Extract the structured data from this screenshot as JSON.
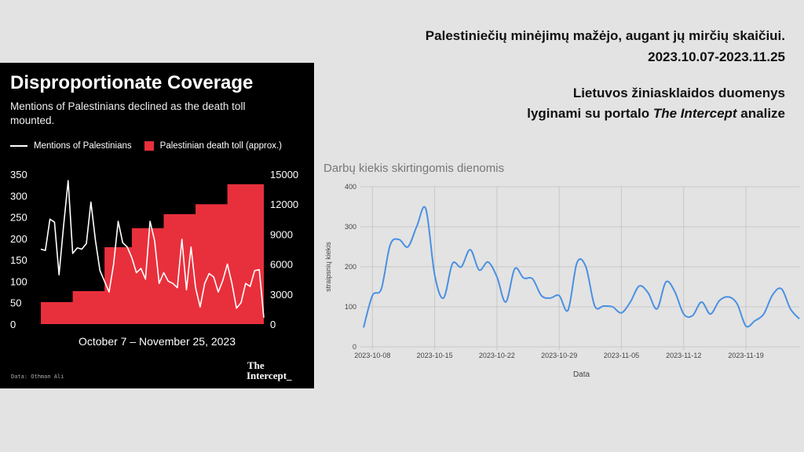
{
  "header": {
    "line1": "Palestiniečių minėjimų mažėjo, augant jų mirčių skaičiui.",
    "line2": "2023.10.07-2023.11.25",
    "sub1": "Lietuvos žiniasklaidos duomenys",
    "sub2_pre": "lyginami su portalo ",
    "sub2_em": "The Intercept",
    "sub2_post": " analize"
  },
  "left_card": {
    "title": "Disproportionate Coverage",
    "subtitle": "Mentions of Palestinians declined as the death toll mounted.",
    "period": "October 7 – November 25, 2023",
    "source": "Data: Othman Ali",
    "logo_line1": "The",
    "logo_line2": "Intercept_",
    "colors": {
      "line": "#ffffff",
      "area": "#e8303c",
      "background": "#000000"
    }
  },
  "chart_data": [
    {
      "type": "line",
      "title": "Disproportionate Coverage",
      "subtitle": "Mentions of Palestinians declined as the death toll mounted.",
      "xlabel": "October 7 – November 25, 2023",
      "ylim_left": [
        0,
        350
      ],
      "ylim_right": [
        0,
        15000
      ],
      "yticks_left": [
        "0",
        "50",
        "100",
        "150",
        "200",
        "250",
        "300",
        "350"
      ],
      "yticks_right": [
        "0",
        "3000",
        "6000",
        "9000",
        "12000",
        "15000"
      ],
      "grid": false,
      "series": [
        {
          "name": "Mentions of Palestinians",
          "kind": "line",
          "axis": "left",
          "color": "#ffffff",
          "values": [
            175,
            172,
            245,
            238,
            115,
            230,
            335,
            165,
            178,
            175,
            188,
            285,
            195,
            125,
            100,
            75,
            140,
            240,
            190,
            180,
            155,
            120,
            130,
            105,
            240,
            195,
            95,
            120,
            100,
            95,
            85,
            198,
            80,
            180,
            85,
            40,
            95,
            118,
            110,
            75,
            102,
            140,
            95,
            37,
            50,
            95,
            88,
            125,
            127,
            15
          ]
        },
        {
          "name": "Palestinian death toll (approx.)",
          "kind": "step-area",
          "axis": "right",
          "color": "#e8303c",
          "values": [
            2200,
            2200,
            2200,
            2200,
            2200,
            2200,
            2200,
            3300,
            3300,
            3300,
            3300,
            3300,
            3300,
            3300,
            7700,
            7700,
            7700,
            7700,
            7700,
            7700,
            9600,
            9600,
            9600,
            9600,
            9600,
            9600,
            9600,
            11000,
            11000,
            11000,
            11000,
            11000,
            11000,
            11000,
            12000,
            12000,
            12000,
            12000,
            12000,
            12000,
            12000,
            14000,
            14000,
            14000,
            14000,
            14000,
            14000,
            14000,
            14000,
            14000
          ]
        }
      ]
    },
    {
      "type": "line",
      "title": "Darbų kiekis skirtingomis dienomis",
      "xlabel": "Data",
      "ylabel": "straipsnių kiekis",
      "ylim": [
        0,
        400
      ],
      "yticks": [
        "0",
        "100",
        "200",
        "300",
        "400"
      ],
      "xticks": [
        "2023-10-08",
        "2023-10-15",
        "2023-10-22",
        "2023-10-29",
        "2023-11-05",
        "2023-11-12",
        "2023-11-19"
      ],
      "grid": true,
      "series": [
        {
          "color": "#4a90e2",
          "x": [
            "2023-10-07",
            "2023-10-08",
            "2023-10-09",
            "2023-10-10",
            "2023-10-11",
            "2023-10-12",
            "2023-10-13",
            "2023-10-14",
            "2023-10-15",
            "2023-10-16",
            "2023-10-17",
            "2023-10-18",
            "2023-10-19",
            "2023-10-20",
            "2023-10-21",
            "2023-10-22",
            "2023-10-23",
            "2023-10-24",
            "2023-10-25",
            "2023-10-26",
            "2023-10-27",
            "2023-10-28",
            "2023-10-29",
            "2023-10-30",
            "2023-10-31",
            "2023-11-01",
            "2023-11-02",
            "2023-11-03",
            "2023-11-04",
            "2023-11-05",
            "2023-11-06",
            "2023-11-07",
            "2023-11-08",
            "2023-11-09",
            "2023-11-10",
            "2023-11-11",
            "2023-11-12",
            "2023-11-13",
            "2023-11-14",
            "2023-11-15",
            "2023-11-16",
            "2023-11-17",
            "2023-11-18",
            "2023-11-19",
            "2023-11-20",
            "2023-11-21",
            "2023-11-22",
            "2023-11-23",
            "2023-11-24",
            "2023-11-25"
          ],
          "values": [
            48,
            128,
            145,
            255,
            268,
            250,
            302,
            345,
            180,
            122,
            208,
            200,
            243,
            192,
            212,
            175,
            112,
            195,
            172,
            170,
            128,
            122,
            128,
            92,
            210,
            200,
            102,
            102,
            100,
            85,
            112,
            152,
            135,
            95,
            162,
            138,
            82,
            78,
            112,
            82,
            115,
            125,
            108,
            52,
            65,
            82,
            130,
            145,
            95,
            70
          ]
        }
      ]
    }
  ]
}
